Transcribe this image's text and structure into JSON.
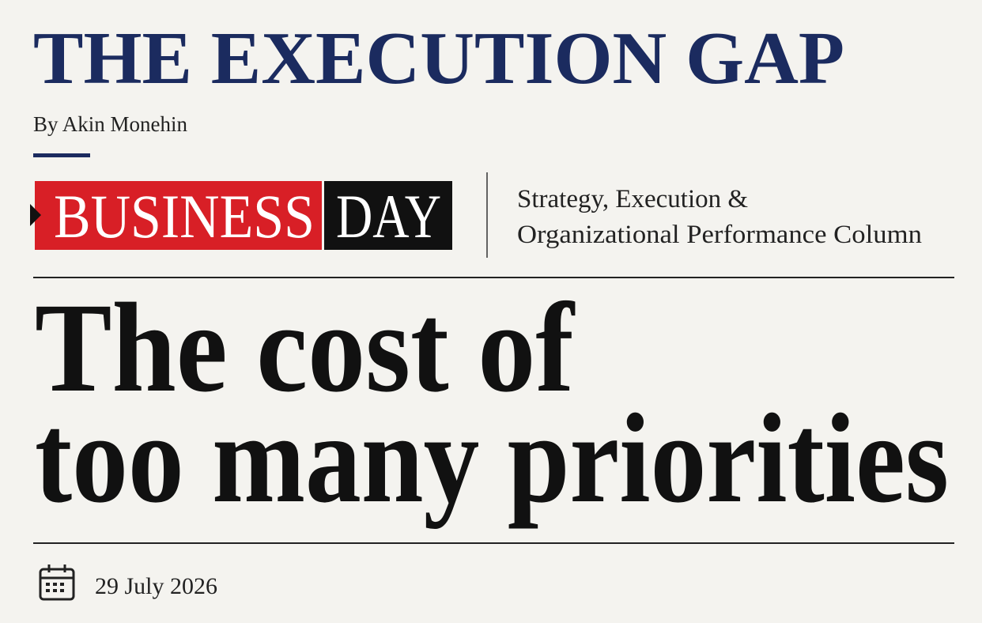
{
  "header": {
    "title": "THE EXECUTION GAP",
    "byline": "By Akin Monehin"
  },
  "brand": {
    "business": "BUSINESS",
    "day": "DAY"
  },
  "column": {
    "lines": [
      "Strategy, Execution &",
      "Organizational Performance Column"
    ]
  },
  "headline": {
    "lines": [
      "The cost of",
      "too many priorities"
    ]
  },
  "date": "29 July 2026"
}
